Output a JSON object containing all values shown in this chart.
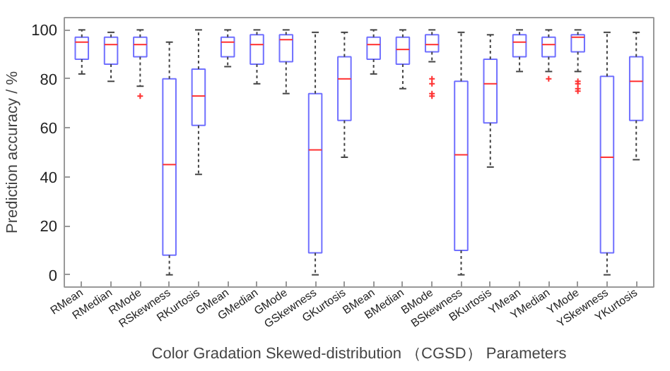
{
  "chart_data": {
    "type": "box",
    "categories": [
      "RMean",
      "RMedian",
      "RMode",
      "RSkewness",
      "RKurtosis",
      "GMean",
      "GMedian",
      "GMode",
      "GSkewness",
      "GKurtosis",
      "BMean",
      "BMedian",
      "BMode",
      "BSkewness",
      "BKurtosis",
      "YMean",
      "YMedian",
      "YMode",
      "YSkewness",
      "YKurtosis"
    ],
    "xlabel": "Color Gradation Skewed-distribution （CGSD） Parameters",
    "ylabel": "Prediction accuracy / %",
    "ylim": [
      -5,
      105
    ],
    "yticks": [
      0,
      20,
      40,
      60,
      80,
      100
    ],
    "grid": false,
    "marker": "cross",
    "series": [
      {
        "color": "#7070ff",
        "boxes": [
          {
            "low": 82,
            "q1": 88,
            "median": 95,
            "q3": 97,
            "high": 100
          },
          {
            "low": 79,
            "q1": 86,
            "median": 94,
            "q3": 97,
            "high": 99
          },
          {
            "low": 77,
            "q1": 89,
            "median": 94,
            "q3": 97,
            "high": 100,
            "outliers": [
              73
            ]
          },
          {
            "low": 0,
            "q1": 8,
            "median": 45,
            "q3": 80,
            "high": 95
          },
          {
            "low": 41,
            "q1": 61,
            "median": 73,
            "q3": 84,
            "high": 100
          },
          {
            "low": 85,
            "q1": 89,
            "median": 95,
            "q3": 97,
            "high": 100
          },
          {
            "low": 78,
            "q1": 86,
            "median": 94,
            "q3": 98,
            "high": 100
          },
          {
            "low": 74,
            "q1": 87,
            "median": 96,
            "q3": 98,
            "high": 100
          },
          {
            "low": 0,
            "q1": 9,
            "median": 51,
            "q3": 74,
            "high": 99
          },
          {
            "low": 48,
            "q1": 63,
            "median": 80,
            "q3": 89,
            "high": 99
          },
          {
            "low": 82,
            "q1": 88,
            "median": 94,
            "q3": 97,
            "high": 100
          },
          {
            "low": 76,
            "q1": 86,
            "median": 92,
            "q3": 97,
            "high": 100
          },
          {
            "low": 87,
            "q1": 91,
            "median": 94,
            "q3": 98,
            "high": 100,
            "outliers": [
              80,
              78,
              74,
              73
            ]
          },
          {
            "low": 0,
            "q1": 10,
            "median": 49,
            "q3": 79,
            "high": 99
          },
          {
            "low": 44,
            "q1": 62,
            "median": 78,
            "q3": 88,
            "high": 98
          },
          {
            "low": 83,
            "q1": 89,
            "median": 95,
            "q3": 98,
            "high": 100
          },
          {
            "low": 83,
            "q1": 89,
            "median": 94,
            "q3": 97,
            "high": 100,
            "outliers": [
              80
            ]
          },
          {
            "low": 83,
            "q1": 91,
            "median": 97,
            "q3": 98,
            "high": 100,
            "outliers": [
              79,
              78,
              76,
              75
            ]
          },
          {
            "low": 0,
            "q1": 9,
            "median": 48,
            "q3": 81,
            "high": 99
          },
          {
            "low": 47,
            "q1": 63,
            "median": 79,
            "q3": 89,
            "high": 99
          }
        ]
      }
    ]
  }
}
